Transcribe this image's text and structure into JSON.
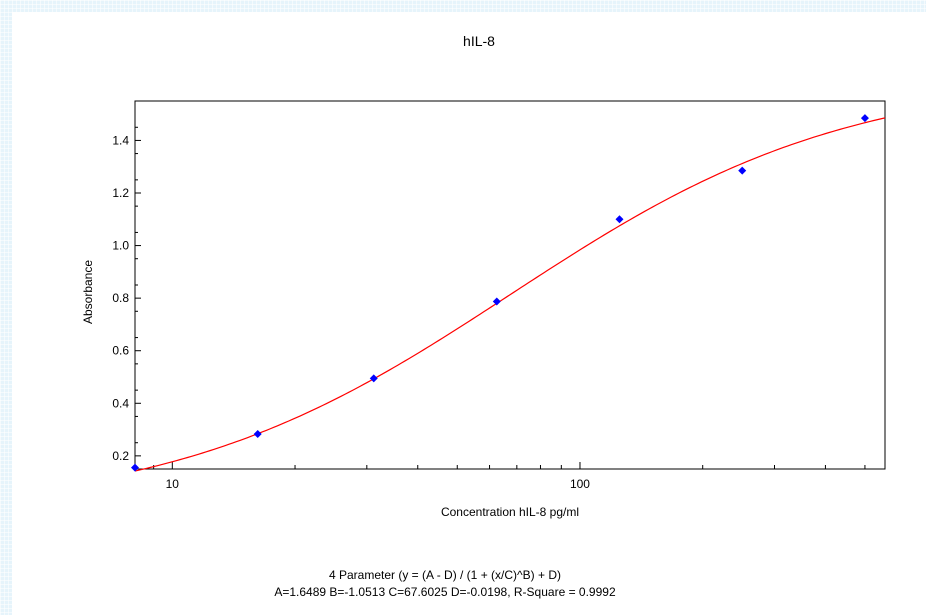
{
  "chart_data": {
    "type": "scatter",
    "title": "hIL-8",
    "xlabel": "Concentration hIL-8 pg/ml",
    "ylabel": "Absorbance",
    "xscale": "log",
    "xlim": [
      8.1,
      560
    ],
    "ylim": [
      0.15,
      1.55
    ],
    "x_ticks": [
      10,
      100
    ],
    "y_ticks": [
      0.2,
      0.4,
      0.6,
      0.8,
      1.0,
      1.2,
      1.4
    ],
    "y_tick_labels": [
      "0.2",
      "0.4",
      "0.6",
      "0.8",
      "1.0",
      "1.2",
      "1.4"
    ],
    "grid": false,
    "legend": "none",
    "points": {
      "x": [
        8.1,
        16.2,
        31.2,
        62.5,
        125,
        250,
        500
      ],
      "y": [
        0.155,
        0.283,
        0.495,
        0.787,
        1.1,
        1.285,
        1.485
      ],
      "color": "#0000ff"
    },
    "fit": {
      "model": "4 Parameter",
      "A": 1.6489,
      "B": -1.0513,
      "C": 67.6025,
      "D": -0.0198,
      "color": "#ff0000"
    },
    "equation_line1": "4 Parameter (y = (A - D) / (1 + (x/C)^B) + D)",
    "equation_line2": "A=1.6489  B=-1.0513  C=67.6025  D=-0.0198, R-Square = 0.9992"
  }
}
